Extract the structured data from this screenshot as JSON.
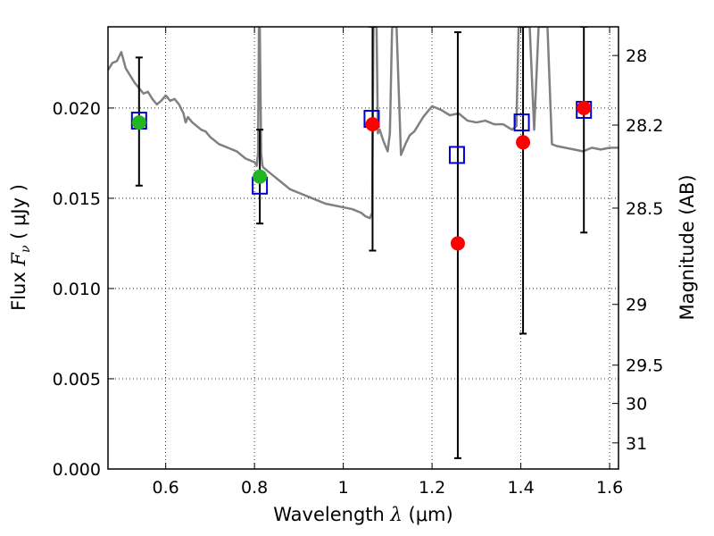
{
  "chart_data": {
    "type": "scatter",
    "xlabel_prefix": "Wavelength  ",
    "xlabel_lambda": "λ",
    "xlabel_unit": " (μm)",
    "ylabel_prefix": "Flux  ",
    "ylabel_symbol": "F",
    "ylabel_sub": "ν",
    "ylabel_unit": "  ( μJy )",
    "y2label": "Magnitude (AB)",
    "xlim": [
      0.47,
      1.62
    ],
    "ylim": [
      0.0,
      0.0245
    ],
    "grid": true,
    "x_ticks": [
      0.6,
      0.8,
      1.0,
      1.2,
      1.4,
      1.6
    ],
    "x_tick_labels": [
      "0.6",
      "0.8",
      "1",
      "1.2",
      "1.4",
      "1.6"
    ],
    "y_ticks": [
      0.0,
      0.005,
      0.01,
      0.015,
      0.02
    ],
    "y_tick_labels": [
      "0.000",
      "0.005",
      "0.010",
      "0.015",
      "0.020"
    ],
    "y2_ticks": [
      28,
      28.2,
      28.5,
      29,
      29.5,
      30,
      31
    ],
    "y2_tick_labels": [
      "28",
      "28.2",
      "28.5",
      "29",
      "29.5",
      "30",
      "31"
    ],
    "colors": {
      "model": "#808080",
      "green": "#22b422",
      "red": "#ff0000",
      "box": "#0000cc",
      "errbar": "#000000"
    },
    "model_spectrum": {
      "name": "SED model",
      "x": [
        0.47,
        0.475,
        0.48,
        0.49,
        0.5,
        0.51,
        0.52,
        0.53,
        0.54,
        0.55,
        0.56,
        0.57,
        0.58,
        0.59,
        0.6,
        0.61,
        0.62,
        0.63,
        0.64,
        0.645,
        0.65,
        0.66,
        0.67,
        0.68,
        0.69,
        0.7,
        0.72,
        0.74,
        0.76,
        0.78,
        0.8,
        0.805,
        0.808,
        0.81,
        0.812,
        0.815,
        0.818,
        0.82,
        0.84,
        0.86,
        0.88,
        0.9,
        0.92,
        0.94,
        0.96,
        0.98,
        1.0,
        1.02,
        1.04,
        1.05,
        1.06,
        1.065,
        1.068,
        1.072,
        1.075,
        1.078,
        1.082,
        1.09,
        1.1,
        1.105,
        1.11,
        1.12,
        1.13,
        1.14,
        1.15,
        1.16,
        1.18,
        1.2,
        1.22,
        1.24,
        1.26,
        1.28,
        1.3,
        1.32,
        1.34,
        1.36,
        1.38,
        1.39,
        1.395,
        1.4,
        1.41,
        1.42,
        1.43,
        1.44,
        1.45,
        1.46,
        1.47,
        1.48,
        1.5,
        1.52,
        1.54,
        1.56,
        1.58,
        1.6,
        1.62
      ],
      "y": [
        0.0221,
        0.0223,
        0.0225,
        0.0226,
        0.0231,
        0.0222,
        0.0218,
        0.0214,
        0.0211,
        0.0208,
        0.0209,
        0.0205,
        0.0202,
        0.0204,
        0.0207,
        0.0204,
        0.0205,
        0.0202,
        0.0197,
        0.0192,
        0.0195,
        0.0192,
        0.019,
        0.0188,
        0.0187,
        0.0184,
        0.018,
        0.0178,
        0.0176,
        0.0172,
        0.017,
        0.0168,
        0.0175,
        0.0245,
        0.0245,
        0.0175,
        0.0168,
        0.0167,
        0.0163,
        0.0159,
        0.0155,
        0.0153,
        0.0151,
        0.0149,
        0.0147,
        0.0146,
        0.0145,
        0.0144,
        0.0142,
        0.014,
        0.0139,
        0.0142,
        0.0245,
        0.0245,
        0.0245,
        0.0186,
        0.0188,
        0.0182,
        0.0176,
        0.0186,
        0.0245,
        0.0245,
        0.0174,
        0.018,
        0.0185,
        0.0187,
        0.0195,
        0.0201,
        0.0199,
        0.0196,
        0.0197,
        0.0193,
        0.0192,
        0.0193,
        0.0191,
        0.0191,
        0.0188,
        0.019,
        0.0245,
        0.0245,
        0.0245,
        0.0245,
        0.0188,
        0.0245,
        0.0245,
        0.0245,
        0.018,
        0.0179,
        0.0178,
        0.0177,
        0.0176,
        0.0178,
        0.0177,
        0.0178,
        0.0178
      ]
    },
    "series": [
      {
        "name": "green points",
        "marker": "circle",
        "x": [
          0.54,
          0.812
        ],
        "y": [
          0.0192,
          0.0162
        ]
      },
      {
        "name": "red points",
        "marker": "circle",
        "x": [
          1.066,
          1.258,
          1.405,
          1.542
        ],
        "y": [
          0.0191,
          0.0125,
          0.0181,
          0.02
        ]
      },
      {
        "name": "model photometry (boxes)",
        "marker": "square",
        "x": [
          0.54,
          0.812,
          1.064,
          1.256,
          1.402,
          1.542
        ],
        "y": [
          0.0193,
          0.0157,
          0.0194,
          0.0174,
          0.0192,
          0.0199
        ]
      }
    ],
    "errorbars": [
      {
        "x": 0.54,
        "low": 0.0157,
        "high": 0.0228
      },
      {
        "x": 0.812,
        "low": 0.0136,
        "high": 0.0188
      },
      {
        "x": 1.066,
        "low": 0.0121,
        "high": 0.0245
      },
      {
        "x": 1.258,
        "low": 0.0006,
        "high": 0.0242
      },
      {
        "x": 1.405,
        "low": 0.0075,
        "high": 0.0245
      },
      {
        "x": 1.542,
        "low": 0.0131,
        "high": 0.0245
      }
    ]
  }
}
